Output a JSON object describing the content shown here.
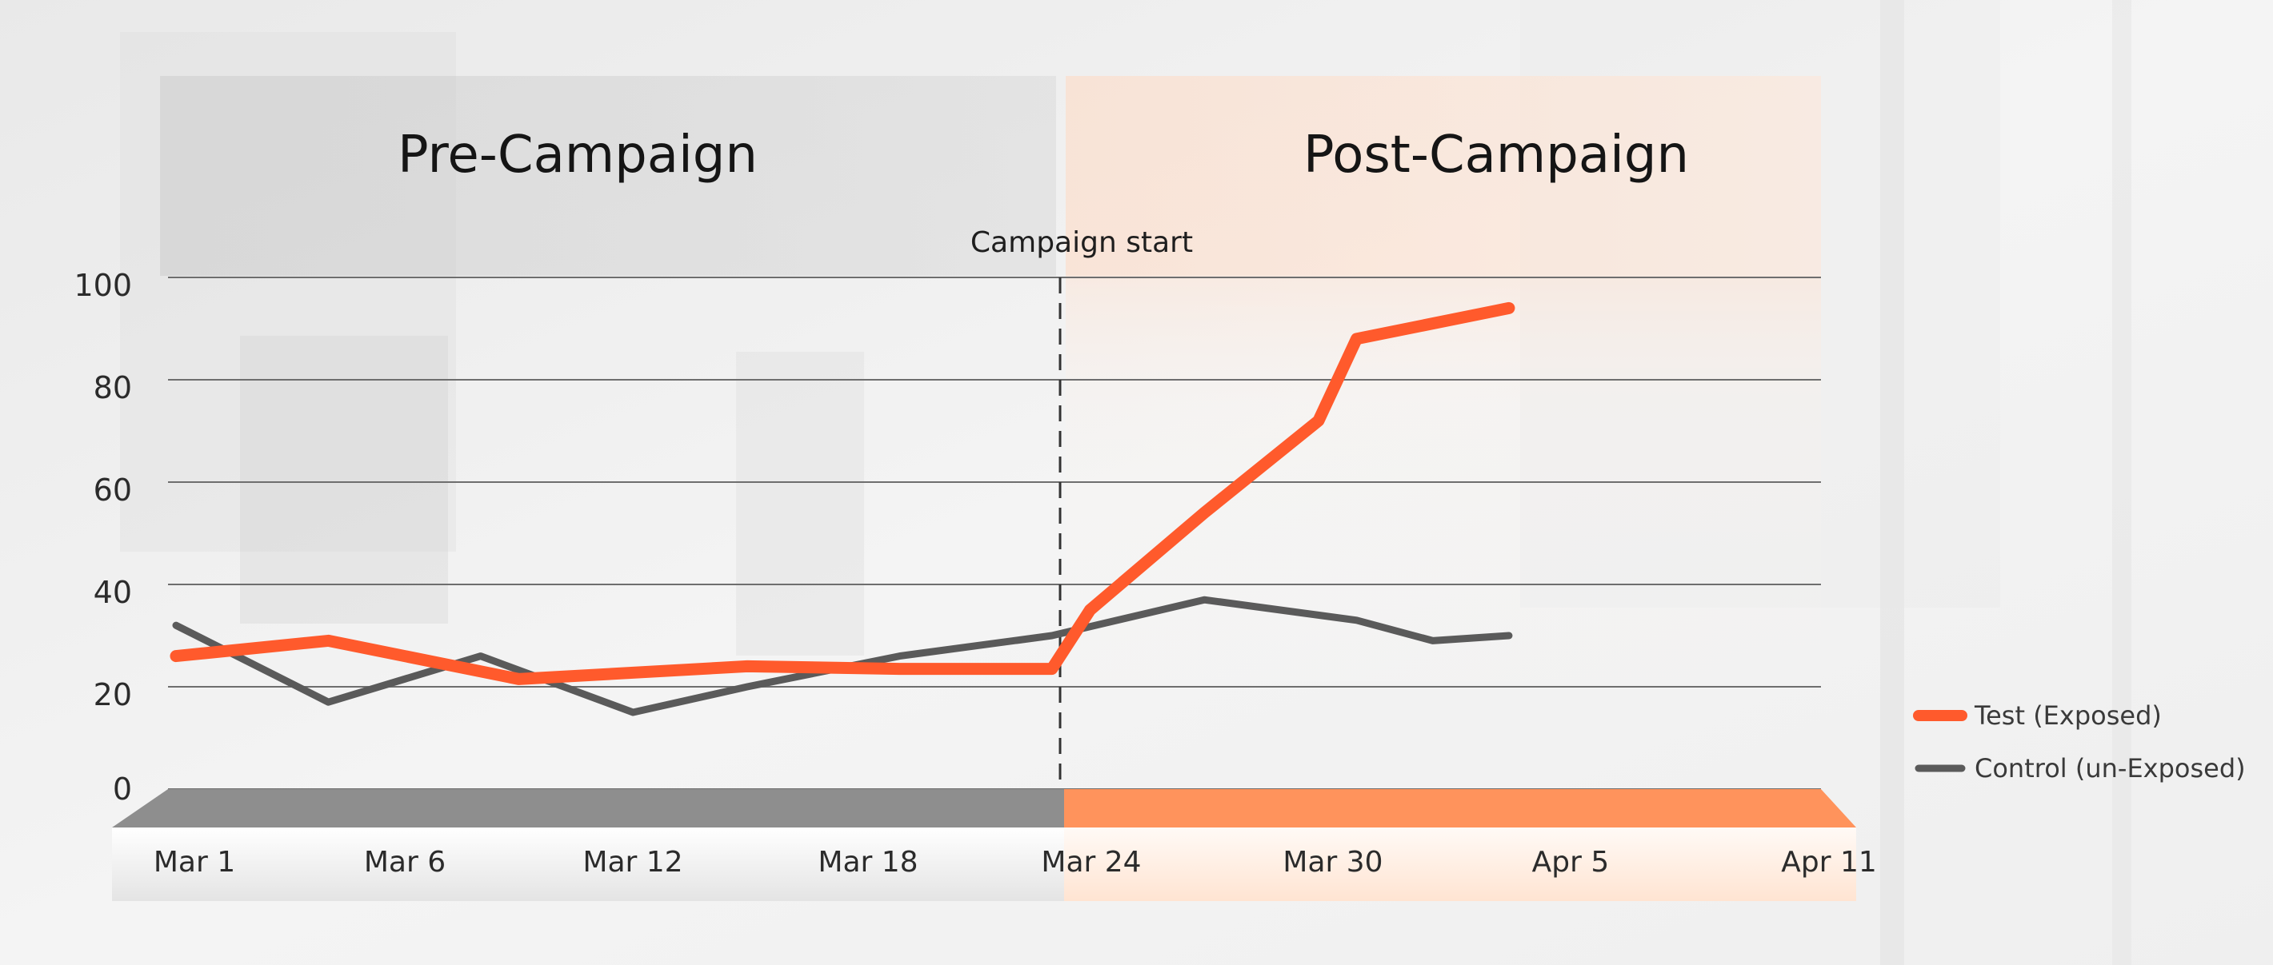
{
  "colors": {
    "test": "#ff5a2c",
    "control": "#5a5a5a",
    "pre_band": "#8e8e8e",
    "post_band": "#ff935c",
    "grid": "#6e6e6e"
  },
  "chart_data": {
    "type": "line",
    "sections": [
      "Pre-Campaign",
      "Post-Campaign"
    ],
    "annotation": {
      "label": "Campaign start",
      "x": "Mar 24"
    },
    "x": [
      "Mar 1",
      "Mar 5",
      "Mar 9",
      "Mar 13",
      "Mar 16",
      "Mar 20",
      "Mar 24",
      "Mar 25",
      "Mar 28",
      "Mar 31",
      "Apr 1",
      "Apr 5"
    ],
    "x_ticks": [
      "Mar 1",
      "Mar 6",
      "Mar 12",
      "Mar 18",
      "Mar 24",
      "Mar 30",
      "Apr 5",
      "Apr 11"
    ],
    "ylim": [
      0,
      100
    ],
    "y_ticks": [
      "0",
      "20",
      "40",
      "60",
      "80",
      "100"
    ],
    "series": [
      {
        "name": "Test (Exposed)",
        "x": [
          "Mar 1",
          "Mar 5",
          "Mar 10",
          "Mar 16",
          "Mar 20",
          "Mar 24",
          "Mar 25",
          "Mar 28",
          "Mar 31",
          "Apr 1",
          "Apr 5"
        ],
        "values": [
          26,
          29,
          21.5,
          24,
          23.5,
          23.5,
          35,
          54,
          72,
          88,
          94
        ]
      },
      {
        "name": "Control (un-Exposed)",
        "x": [
          "Mar 1",
          "Mar 5",
          "Mar 9",
          "Mar 13",
          "Mar 16",
          "Mar 20",
          "Mar 24",
          "Mar 28",
          "Apr 1",
          "Apr 3",
          "Apr 5"
        ],
        "values": [
          32,
          17,
          26,
          15,
          20,
          26,
          30,
          37,
          33,
          29,
          30
        ]
      }
    ],
    "legend_position": "right",
    "grid": true
  }
}
